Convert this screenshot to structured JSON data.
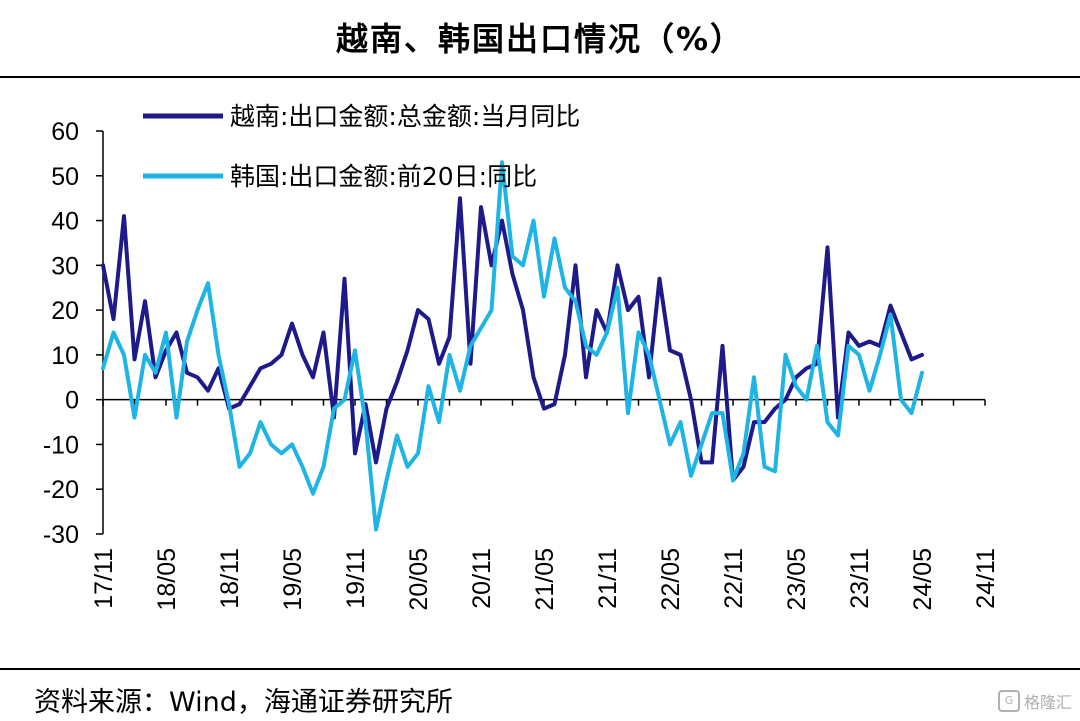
{
  "header": {
    "title": "越南、韩国出口情况（%）"
  },
  "footer": {
    "source": "资料来源：Wind，海通证券研究所",
    "watermark": "格隆汇"
  },
  "chart_data": {
    "type": "line",
    "ylim": [
      -30,
      60
    ],
    "yticks": [
      60,
      50,
      40,
      30,
      20,
      10,
      0,
      -10,
      -20,
      -30
    ],
    "x_start": "2017-11",
    "x_end": "2024-11",
    "xticks": [
      "17/11",
      "18/05",
      "18/11",
      "19/05",
      "19/11",
      "20/05",
      "20/11",
      "21/05",
      "21/11",
      "22/05",
      "22/11",
      "23/05",
      "23/11",
      "24/05",
      "24/11"
    ],
    "grid": false,
    "legend_position": "top-left",
    "series": [
      {
        "name": "越南:出口金额:总金额:当月同比",
        "color": "#1f1a8a",
        "start": "2017-11",
        "values": [
          30,
          18,
          41,
          9,
          22,
          5,
          11,
          15,
          6,
          5,
          2,
          7,
          -2,
          -1,
          3,
          7,
          8,
          10,
          17,
          10,
          5,
          15,
          -4,
          27,
          -12,
          -1,
          -14,
          -2,
          4,
          11,
          20,
          18,
          8,
          14,
          45,
          8,
          43,
          30,
          40,
          28,
          20,
          5,
          -2,
          -1,
          10,
          30,
          5,
          20,
          15,
          30,
          20,
          23,
          5,
          27,
          11,
          10,
          0,
          -14,
          -14,
          12,
          -18,
          -15,
          -5,
          -5,
          -2,
          0,
          5,
          7,
          8,
          34,
          -4,
          15,
          12,
          13,
          12,
          21,
          15,
          9,
          10
        ]
      },
      {
        "name": "韩国:出口金额:前20日:同比",
        "color": "#1fb4e6",
        "start": "2017-11",
        "values": [
          7,
          15,
          10,
          -4,
          10,
          6,
          15,
          -4,
          13,
          20,
          26,
          10,
          -1,
          -15,
          -12,
          -5,
          -10,
          -12,
          -10,
          -15,
          -21,
          -15,
          -2,
          0,
          11,
          -5,
          -29,
          -18,
          -8,
          -15,
          -12,
          3,
          -5,
          10,
          2,
          12,
          16,
          20,
          53,
          32,
          30,
          40,
          23,
          36,
          25,
          22,
          12,
          10,
          15,
          25,
          -3,
          15,
          10,
          0,
          -10,
          -5,
          -17,
          -10,
          -3,
          -3,
          -18,
          -12,
          5,
          -15,
          -16,
          10,
          3,
          0,
          12,
          -5,
          -8,
          12,
          10,
          2,
          10,
          19,
          0,
          -3,
          6
        ]
      }
    ]
  }
}
